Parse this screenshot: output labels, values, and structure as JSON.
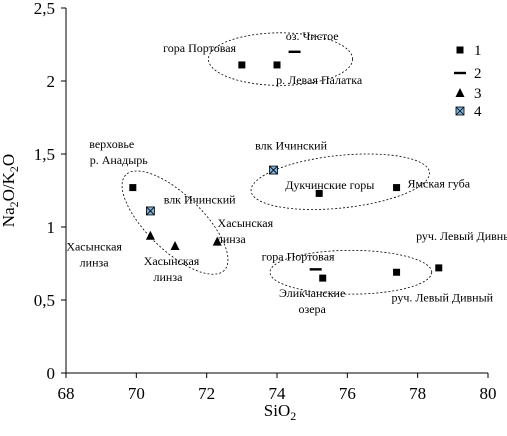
{
  "chart_data": {
    "type": "scatter",
    "xlabel_base": "SiO",
    "xlabel_sub": "2",
    "ylabel_parts": [
      {
        "t": "Na",
        "sub": false
      },
      {
        "t": "2",
        "sub": true
      },
      {
        "t": "O/K",
        "sub": false
      },
      {
        "t": "2",
        "sub": true
      },
      {
        "t": "O",
        "sub": false
      }
    ],
    "xlim": [
      68,
      80
    ],
    "ylim": [
      0,
      2.5
    ],
    "x_ticks": [
      68,
      70,
      72,
      74,
      76,
      78,
      80
    ],
    "y_ticks": [
      0,
      0.5,
      1,
      1.5,
      2,
      2.5
    ],
    "x_tick_labels": [
      "68",
      "70",
      "72",
      "74",
      "76",
      "78",
      "80"
    ],
    "y_tick_labels": [
      "0",
      "0,5",
      "1",
      "1,5",
      "2",
      "2,5"
    ],
    "grid": false,
    "legend_position": "top-right",
    "series": [
      {
        "name": "1",
        "marker": "square",
        "points": [
          {
            "x": 69.9,
            "y": 1.27
          },
          {
            "x": 73.0,
            "y": 2.11
          },
          {
            "x": 74.0,
            "y": 2.11
          },
          {
            "x": 75.2,
            "y": 1.23
          },
          {
            "x": 77.4,
            "y": 1.27
          },
          {
            "x": 75.3,
            "y": 0.65
          },
          {
            "x": 77.4,
            "y": 0.69
          },
          {
            "x": 78.6,
            "y": 0.72
          }
        ]
      },
      {
        "name": "2",
        "marker": "dash",
        "points": [
          {
            "x": 74.5,
            "y": 2.2
          },
          {
            "x": 75.1,
            "y": 0.71
          }
        ]
      },
      {
        "name": "3",
        "marker": "triangle",
        "points": [
          {
            "x": 70.4,
            "y": 0.94
          },
          {
            "x": 71.1,
            "y": 0.87
          },
          {
            "x": 72.3,
            "y": 0.9
          }
        ]
      },
      {
        "name": "4",
        "marker": "boxcross",
        "points": [
          {
            "x": 70.4,
            "y": 1.11
          },
          {
            "x": 73.9,
            "y": 1.39
          }
        ]
      }
    ],
    "ellipses": [
      {
        "cx": 74.1,
        "cy": 2.15,
        "rx": 2.05,
        "ry": 0.18,
        "angle": 0
      },
      {
        "cx": 75.8,
        "cy": 1.31,
        "rx": 2.55,
        "ry": 0.18,
        "angle": -6
      },
      {
        "cx": 71.1,
        "cy": 1.03,
        "rx": 1.95,
        "ry": 0.19,
        "angle": 44
      },
      {
        "cx": 76.1,
        "cy": 0.69,
        "rx": 2.3,
        "ry": 0.15,
        "angle": 0
      }
    ],
    "annotations": [
      {
        "text": "гора Портовая",
        "x": 71.8,
        "y": 2.2,
        "anchor": "middle"
      },
      {
        "text": "оз. Чистое",
        "x": 75.0,
        "y": 2.28,
        "anchor": "middle"
      },
      {
        "text": "р. Левая Палатка",
        "x": 75.2,
        "y": 1.98,
        "anchor": "middle"
      },
      {
        "text": "верховье",
        "x": 69.3,
        "y": 1.54,
        "anchor": "middle"
      },
      {
        "text": "р. Анадырь",
        "x": 69.5,
        "y": 1.43,
        "anchor": "middle"
      },
      {
        "text": "влк Ичинский",
        "x": 74.4,
        "y": 1.53,
        "anchor": "middle"
      },
      {
        "text": "Ямская губа",
        "x": 78.6,
        "y": 1.27,
        "anchor": "middle"
      },
      {
        "text": "влк Ичинский",
        "x": 71.8,
        "y": 1.16,
        "anchor": "middle"
      },
      {
        "text": "Дукчинские горы",
        "x": 75.5,
        "y": 1.26,
        "anchor": "middle"
      },
      {
        "text": "Хасынская",
        "x": 73.1,
        "y": 1.0,
        "anchor": "middle"
      },
      {
        "text": "линза",
        "x": 72.7,
        "y": 0.89,
        "anchor": "middle"
      },
      {
        "text": "Хасынская",
        "x": 68.8,
        "y": 0.84,
        "anchor": "middle"
      },
      {
        "text": "линза",
        "x": 68.8,
        "y": 0.73,
        "anchor": "middle"
      },
      {
        "text": "Хасынская",
        "x": 71.0,
        "y": 0.74,
        "anchor": "middle"
      },
      {
        "text": "линза",
        "x": 70.9,
        "y": 0.63,
        "anchor": "middle"
      },
      {
        "text": "гора Портовая",
        "x": 74.6,
        "y": 0.77,
        "anchor": "middle"
      },
      {
        "text": "руч. Левый Дивный",
        "x": 79.4,
        "y": 0.91,
        "anchor": "middle"
      },
      {
        "text": "Эликчанские",
        "x": 75.0,
        "y": 0.52,
        "anchor": "middle"
      },
      {
        "text": "озера",
        "x": 75.0,
        "y": 0.41,
        "anchor": "middle"
      },
      {
        "text": "руч. Левый Дивный",
        "x": 78.7,
        "y": 0.49,
        "anchor": "middle"
      }
    ]
  }
}
